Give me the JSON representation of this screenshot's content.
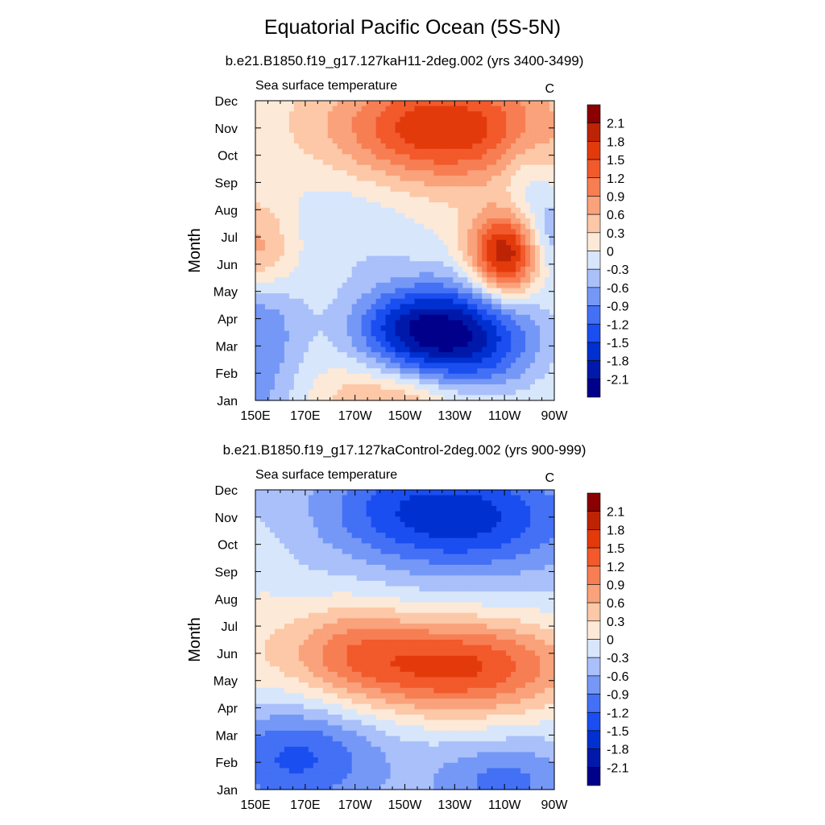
{
  "figure": {
    "title": "Equatorial Pacific Ocean (5S-5N)"
  },
  "chart_data": [
    {
      "type": "heatmap",
      "title": "b.e21.B1850.f19_g17.127kaH11-2deg.002 (yrs 3400-3499)",
      "left_label": "Sea surface temperature",
      "units": "C",
      "ylabel": "Month",
      "x_tick_labels": [
        "150E",
        "170E",
        "170W",
        "150W",
        "130W",
        "110W",
        "90W"
      ],
      "x_ticks_deg": [
        150,
        170,
        190,
        210,
        230,
        250,
        270
      ],
      "y_tick_labels": [
        "Jan",
        "Feb",
        "Mar",
        "Apr",
        "May",
        "Jun",
        "Jul",
        "Aug",
        "Sep",
        "Oct",
        "Nov",
        "Dec"
      ],
      "xlim": [
        150,
        270
      ],
      "ylim": [
        1,
        12
      ],
      "colorbar_levels": [
        -2.1,
        -1.8,
        -1.5,
        -1.2,
        -0.9,
        -0.6,
        -0.3,
        0,
        0.3,
        0.6,
        0.9,
        1.2,
        1.5,
        1.8,
        2.1
      ],
      "colorbar_labels": [
        "2.1",
        "1.8",
        "1.5",
        "1.2",
        "0.9",
        "0.6",
        "0.3",
        "0",
        "-0.3",
        "-0.6",
        "-0.9",
        "-1.2",
        "-1.5",
        "-1.8",
        "-2.1"
      ],
      "features": [
        {
          "lon": 150,
          "month": 1,
          "value": -0.7,
          "sigma_lon": 14,
          "sigma_month": 1.8
        },
        {
          "lon": 150,
          "month": 4,
          "value": -0.8,
          "sigma_lon": 14,
          "sigma_month": 1.4
        },
        {
          "lon": 150,
          "month": 6.5,
          "value": 0.8,
          "sigma_lon": 12,
          "sigma_month": 1.2
        },
        {
          "lon": 210,
          "month": 1,
          "value": 0.8,
          "sigma_lon": 22,
          "sigma_month": 0.9
        },
        {
          "lon": 185,
          "month": 7.2,
          "value": -0.4,
          "sigma_lon": 22,
          "sigma_month": 1.6
        },
        {
          "lon": 232,
          "month": 3.3,
          "value": -2.1,
          "sigma_lon": 22,
          "sigma_month": 1.5
        },
        {
          "lon": 208,
          "month": 3.7,
          "value": -0.9,
          "sigma_lon": 16,
          "sigma_month": 1.0
        },
        {
          "lon": 250,
          "month": 6.3,
          "value": 2.1,
          "sigma_lon": 10,
          "sigma_month": 1.1
        },
        {
          "lon": 225,
          "month": 11,
          "value": 1.7,
          "sigma_lon": 30,
          "sigma_month": 1.4
        },
        {
          "lon": 268,
          "month": 7,
          "value": -0.7,
          "sigma_lon": 7,
          "sigma_month": 1.1
        },
        {
          "lon": 258,
          "month": 9,
          "value": -0.4,
          "sigma_lon": 8,
          "sigma_month": 1.2
        }
      ],
      "base_value": 0.1
    },
    {
      "type": "heatmap",
      "title": "b.e21.B1850.f19_g17.127kaControl-2deg.002 (yrs 900-999)",
      "left_label": "Sea surface temperature",
      "units": "C",
      "ylabel": "Month",
      "x_tick_labels": [
        "150E",
        "170E",
        "170W",
        "150W",
        "130W",
        "110W",
        "90W"
      ],
      "x_ticks_deg": [
        150,
        170,
        190,
        210,
        230,
        250,
        270
      ],
      "y_tick_labels": [
        "Jan",
        "Feb",
        "Mar",
        "Apr",
        "May",
        "Jun",
        "Jul",
        "Aug",
        "Sep",
        "Oct",
        "Nov",
        "Dec"
      ],
      "xlim": [
        150,
        270
      ],
      "ylim": [
        1,
        12
      ],
      "colorbar_levels": [
        -2.1,
        -1.8,
        -1.5,
        -1.2,
        -0.9,
        -0.6,
        -0.3,
        0,
        0.3,
        0.6,
        0.9,
        1.2,
        1.5,
        1.8,
        2.1
      ],
      "colorbar_labels": [
        "2.1",
        "1.8",
        "1.5",
        "1.2",
        "0.9",
        "0.6",
        "0.3",
        "0",
        "-0.3",
        "-0.6",
        "-0.9",
        "-1.2",
        "-1.5",
        "-1.8",
        "-2.1"
      ],
      "features": [
        {
          "lon": 230,
          "month": 5.5,
          "value": 1.9,
          "sigma_lon": 36,
          "sigma_month": 1.3
        },
        {
          "lon": 185,
          "month": 6.3,
          "value": 0.7,
          "sigma_lon": 18,
          "sigma_month": 1.3
        },
        {
          "lon": 150,
          "month": 6.5,
          "value": 0.3,
          "sigma_lon": 12,
          "sigma_month": 2.5
        },
        {
          "lon": 235,
          "month": 11,
          "value": -1.3,
          "sigma_lon": 30,
          "sigma_month": 1.4
        },
        {
          "lon": 200,
          "month": 11.5,
          "value": -0.4,
          "sigma_lon": 22,
          "sigma_month": 1.3
        },
        {
          "lon": 165,
          "month": 2.2,
          "value": -1.0,
          "sigma_lon": 25,
          "sigma_month": 1.4
        },
        {
          "lon": 250,
          "month": 1.3,
          "value": -0.7,
          "sigma_lon": 20,
          "sigma_month": 1.0
        }
      ],
      "base_value": -0.3
    }
  ]
}
